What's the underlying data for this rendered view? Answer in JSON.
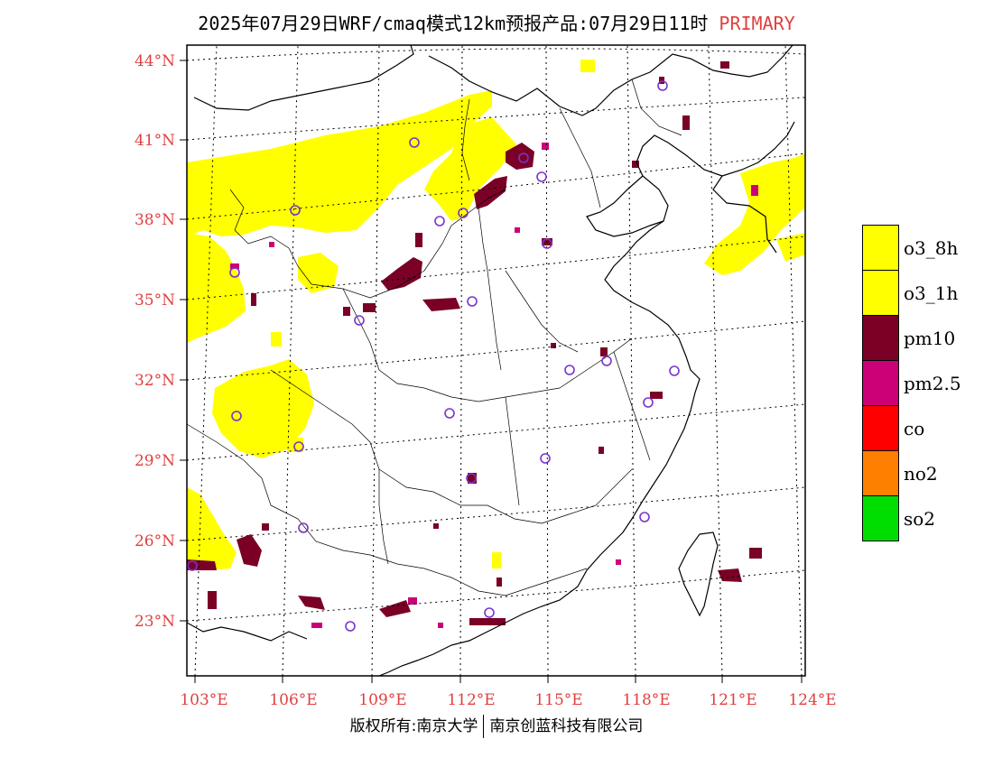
{
  "title": {
    "main": "2025年07月29日WRF/cmaq模式12km预报产品:07月29日11时",
    "tag": "PRIMARY"
  },
  "axes": {
    "lat_labels": [
      "44°N",
      "41°N",
      "38°N",
      "35°N",
      "32°N",
      "29°N",
      "26°N",
      "23°N"
    ],
    "lon_labels": [
      "103°E",
      "106°E",
      "109°E",
      "112°E",
      "115°E",
      "118°E",
      "121°E",
      "124°E"
    ]
  },
  "legend": [
    {
      "label": "o3_8h",
      "color": "#ffff00"
    },
    {
      "label": "o3_1h",
      "color": "#ffff00"
    },
    {
      "label": "pm10",
      "color": "#7a0026"
    },
    {
      "label": "pm2.5",
      "color": "#cc0077"
    },
    {
      "label": "co",
      "color": "#ff0000"
    },
    {
      "label": "no2",
      "color": "#ff7f00"
    },
    {
      "label": "so2",
      "color": "#00dd00"
    }
  ],
  "colors": {
    "o3": "#ffff00",
    "pm10": "#7a0026",
    "pm25": "#cc0077",
    "station_marker": "#7a33cc",
    "axis_label": "#e04040"
  },
  "copyright": {
    "left": "版权所有:南京大学",
    "right": "南京创蓝科技有限公司"
  }
}
